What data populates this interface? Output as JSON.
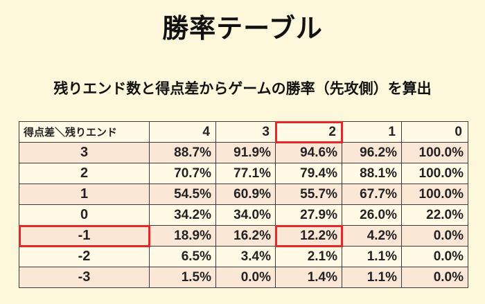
{
  "title": "勝率テーブル",
  "subtitle": "残りエンド数と得点差からゲームの勝率（先攻側）を算出",
  "table": {
    "corner": "得点差＼残りエンド",
    "columns": [
      "4",
      "3",
      "2",
      "1",
      "0"
    ],
    "rows": [
      {
        "diff": "3",
        "values": [
          "88.7%",
          "91.9%",
          "94.6%",
          "96.2%",
          "100.0%"
        ]
      },
      {
        "diff": "2",
        "values": [
          "70.7%",
          "77.1%",
          "79.4%",
          "88.1%",
          "100.0%"
        ]
      },
      {
        "diff": "1",
        "values": [
          "54.5%",
          "60.9%",
          "55.7%",
          "67.7%",
          "100.0%"
        ]
      },
      {
        "diff": "0",
        "values": [
          "34.2%",
          "34.0%",
          "27.9%",
          "26.0%",
          "22.0%"
        ]
      },
      {
        "diff": "-1",
        "values": [
          "18.9%",
          "16.2%",
          "12.2%",
          "4.2%",
          "0.0%"
        ]
      },
      {
        "diff": "-2",
        "values": [
          "6.5%",
          "3.4%",
          "2.1%",
          "1.1%",
          "0.0%"
        ]
      },
      {
        "diff": "-3",
        "values": [
          "1.5%",
          "0.0%",
          "1.4%",
          "1.1%",
          "0.0%"
        ]
      }
    ]
  },
  "colors": {
    "background": "#fdf7dc",
    "row_shade": "#fbe7d6",
    "highlight": "#e8262a"
  }
}
